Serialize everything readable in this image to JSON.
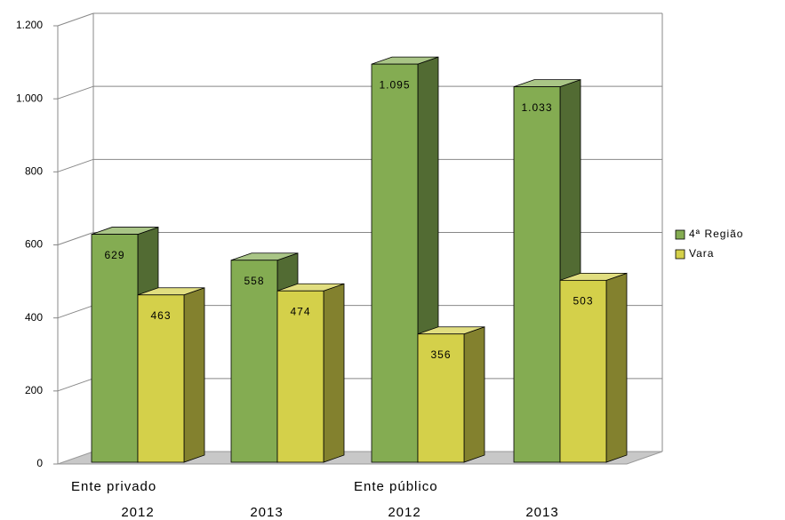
{
  "chart_data": {
    "type": "bar3d",
    "groups": [
      "Ente privado",
      "Ente público"
    ],
    "categories": [
      "2012",
      "2013",
      "2012",
      "2013"
    ],
    "series": [
      {
        "name": "4ª Região",
        "color": "#84ac52",
        "values": [
          629,
          558,
          1095,
          1033
        ],
        "value_labels": [
          "629",
          "558",
          "1.095",
          "1.033"
        ]
      },
      {
        "name": "Vara",
        "color": "#d4d04a",
        "values": [
          463,
          474,
          356,
          503
        ]
      }
    ],
    "ylim": [
      0,
      1200
    ],
    "yticks": [
      0,
      200,
      400,
      600,
      800,
      {
        "value": 1000,
        "label": "1.000"
      },
      {
        "value": 1200,
        "label": "1.200"
      }
    ],
    "grid": true,
    "legend": "right"
  }
}
